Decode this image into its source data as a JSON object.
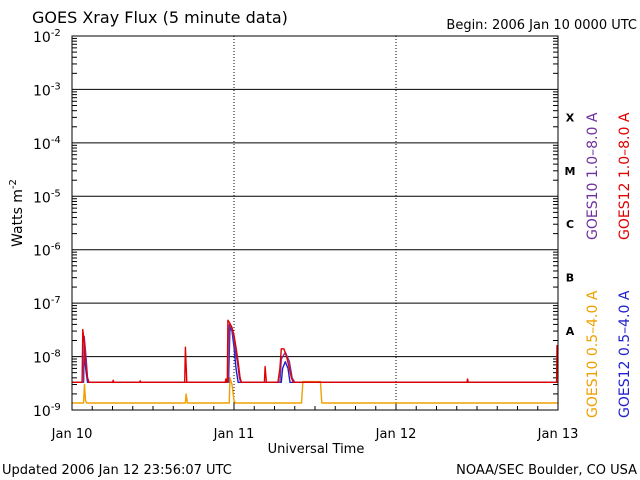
{
  "chart_data": {
    "type": "line",
    "title": "GOES Xray Flux (5 minute data)",
    "begin_label": "Begin:  2006 Jan 10 0000 UTC",
    "ylabel": "Watts m",
    "ylabel_sup": "-2",
    "xlabel": "Universal Time",
    "y_scale": "log",
    "ylim": [
      1e-09,
      0.01
    ],
    "y_ticks": [
      {
        "base": "10",
        "exp": "-2",
        "value": 0.01
      },
      {
        "base": "10",
        "exp": "-3",
        "value": 0.001
      },
      {
        "base": "10",
        "exp": "-4",
        "value": 0.0001
      },
      {
        "base": "10",
        "exp": "-5",
        "value": 1e-05
      },
      {
        "base": "10",
        "exp": "-6",
        "value": 1e-06
      },
      {
        "base": "10",
        "exp": "-7",
        "value": 1e-07
      },
      {
        "base": "10",
        "exp": "-8",
        "value": 1e-08
      },
      {
        "base": "10",
        "exp": "-9",
        "value": 1e-09
      }
    ],
    "xlim": [
      0,
      72
    ],
    "x_unit": "hours since 2006 Jan 10 0000 UTC",
    "x_ticks": [
      {
        "label": "Jan 10",
        "value": 0
      },
      {
        "label": "Jan 11",
        "value": 24
      },
      {
        "label": "Jan 12",
        "value": 48
      },
      {
        "label": "Jan 13",
        "value": 72
      }
    ],
    "flare_classes": [
      {
        "label": "X",
        "value": 0.0003
      },
      {
        "label": "M",
        "value": 3e-05
      },
      {
        "label": "C",
        "value": 3e-06
      },
      {
        "label": "B",
        "value": 3e-07
      },
      {
        "label": "A",
        "value": 3e-08
      }
    ],
    "legend": {
      "placement": "right",
      "upper": [
        {
          "label": "GOES10 1.0–8.0 A",
          "color": "#7030a0"
        },
        {
          "label": "GOES12 1.0–8.0 A",
          "color": "#e00000"
        }
      ],
      "lower": [
        {
          "label": "GOES10 0.5–4.0 A",
          "color": "#f0a000"
        },
        {
          "label": "GOES12 0.5–4.0 A",
          "color": "#2020d0"
        }
      ]
    },
    "series": [
      {
        "name": "GOES10 0.5–4.0 A",
        "color": "#f0a000",
        "points": [
          [
            0,
            1.35e-09
          ],
          [
            1.7,
            1.35e-09
          ],
          [
            1.85,
            3e-09
          ],
          [
            2,
            1.5e-09
          ],
          [
            2.2,
            1.35e-09
          ],
          [
            16.8,
            1.35e-09
          ],
          [
            16.9,
            2e-09
          ],
          [
            17.1,
            1.35e-09
          ],
          [
            22,
            1.35e-09
          ],
          [
            23.3,
            1.35e-09
          ],
          [
            23.4,
            4e-09
          ],
          [
            23.7,
            3e-09
          ],
          [
            24,
            1.5e-09
          ],
          [
            24.2,
            1.35e-09
          ],
          [
            34,
            1.35e-09
          ],
          [
            34.2,
            3.4e-09
          ],
          [
            36.8,
            3.4e-09
          ],
          [
            37,
            1.35e-09
          ],
          [
            72,
            1.35e-09
          ]
        ]
      },
      {
        "name": "GOES12 0.5–4.0 A",
        "color": "#2020d0",
        "points": [
          [
            0,
            3.3e-09
          ],
          [
            1.7,
            3.3e-09
          ],
          [
            1.8,
            1.1e-08
          ],
          [
            2.1,
            5e-09
          ],
          [
            2.3,
            3.3e-09
          ],
          [
            23.2,
            3.3e-09
          ],
          [
            23.4,
            3.5e-08
          ],
          [
            23.7,
            3e-08
          ],
          [
            24,
            1.5e-08
          ],
          [
            24.3,
            6e-09
          ],
          [
            24.6,
            3.3e-09
          ],
          [
            31,
            3.3e-09
          ],
          [
            31.2,
            6e-09
          ],
          [
            31.6,
            8e-09
          ],
          [
            32,
            6e-09
          ],
          [
            32.3,
            3.3e-09
          ],
          [
            72,
            3.3e-09
          ]
        ]
      },
      {
        "name": "GOES10 1.0–8.0 A",
        "color": "#7030a0",
        "points": [
          [
            0,
            3.3e-09
          ],
          [
            1.7,
            3.3e-09
          ],
          [
            1.8,
            2.4e-08
          ],
          [
            2.1,
            9e-09
          ],
          [
            2.3,
            4e-09
          ],
          [
            2.5,
            3.3e-09
          ],
          [
            23.2,
            3.3e-09
          ],
          [
            23.3,
            4e-08
          ],
          [
            23.6,
            3.3e-08
          ],
          [
            23.9,
            2.4e-08
          ],
          [
            24.2,
            1.3e-08
          ],
          [
            24.5,
            8e-09
          ],
          [
            24.8,
            4e-09
          ],
          [
            25,
            3.3e-09
          ],
          [
            30.8,
            3.3e-09
          ],
          [
            31,
            9e-09
          ],
          [
            31.6,
            1.2e-08
          ],
          [
            32.2,
            8e-09
          ],
          [
            32.6,
            4e-09
          ],
          [
            33,
            3.3e-09
          ],
          [
            72,
            3.3e-09
          ]
        ]
      },
      {
        "name": "GOES12 1.0–8.0 A",
        "color": "#e00000",
        "points": [
          [
            0,
            3.3e-09
          ],
          [
            1.5,
            3.3e-09
          ],
          [
            1.6,
            3.2e-08
          ],
          [
            1.8,
            1.8e-08
          ],
          [
            2,
            8e-09
          ],
          [
            2.3,
            4e-09
          ],
          [
            2.5,
            3.3e-09
          ],
          [
            6,
            3.3e-09
          ],
          [
            6.1,
            3.6e-09
          ],
          [
            6.2,
            3.3e-09
          ],
          [
            10,
            3.3e-09
          ],
          [
            10.1,
            3.5e-09
          ],
          [
            10.2,
            3.3e-09
          ],
          [
            16.7,
            3.3e-09
          ],
          [
            16.8,
            1.5e-08
          ],
          [
            17,
            3.3e-09
          ],
          [
            22.7,
            3.3e-09
          ],
          [
            22.8,
            3.8e-09
          ],
          [
            23,
            3.3e-09
          ],
          [
            23.1,
            4.8e-08
          ],
          [
            23.4,
            4.2e-08
          ],
          [
            23.7,
            3.5e-08
          ],
          [
            24,
            2.5e-08
          ],
          [
            24.3,
            1.5e-08
          ],
          [
            24.6,
            8e-09
          ],
          [
            24.9,
            4e-09
          ],
          [
            25.1,
            3.3e-09
          ],
          [
            28.5,
            3.3e-09
          ],
          [
            28.6,
            6.5e-09
          ],
          [
            28.8,
            3.3e-09
          ],
          [
            30.5,
            3.3e-09
          ],
          [
            30.8,
            6e-09
          ],
          [
            31,
            1.4e-08
          ],
          [
            31.4,
            1.4e-08
          ],
          [
            31.8,
            1e-08
          ],
          [
            32.2,
            6e-09
          ],
          [
            32.5,
            4e-09
          ],
          [
            32.8,
            3.3e-09
          ],
          [
            58.5,
            3.3e-09
          ],
          [
            58.6,
            3.8e-09
          ],
          [
            58.7,
            3.3e-09
          ],
          [
            71.8,
            3.3e-09
          ],
          [
            71.85,
            1.6e-08
          ],
          [
            72,
            1.6e-08
          ]
        ]
      }
    ]
  },
  "footer": {
    "updated": "Updated 2006 Jan 12 23:56:07 UTC",
    "credit": "NOAA/SEC Boulder, CO USA"
  }
}
